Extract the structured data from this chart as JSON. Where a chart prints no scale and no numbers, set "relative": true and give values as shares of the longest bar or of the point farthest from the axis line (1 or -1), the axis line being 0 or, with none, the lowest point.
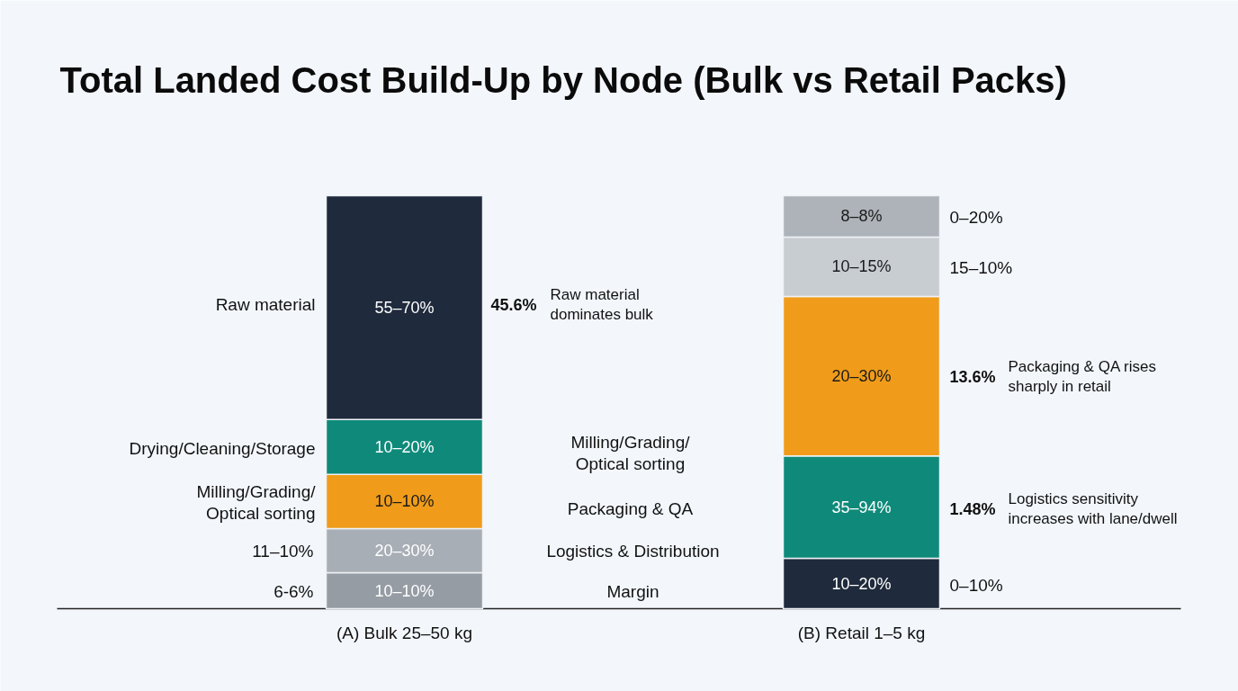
{
  "chart_data": {
    "type": "bar",
    "title": "Total Landed Cost Build-Up by Node (Bulk vs Retail Packs)",
    "categories": [
      "(A) Bulk 25–50 kg",
      "(B) Retail 1–5 kg"
    ],
    "stacked": true,
    "relative": true,
    "series": [
      {
        "color": "#959ca4",
        "values": [
          0.087,
          null
        ]
      },
      {
        "color": "#a8aeb5",
        "values": [
          0.107,
          null
        ]
      },
      {
        "color": "#f09c1a",
        "values": [
          0.131,
          null
        ]
      },
      {
        "color": "#0f8a7a",
        "values": [
          0.133,
          null
        ]
      },
      {
        "color": "#1f2a3c",
        "values": [
          0.542,
          null
        ]
      },
      {
        "color": "#1f2a3c",
        "values": [
          null,
          0.122
        ]
      },
      {
        "color": "#0f8a7a",
        "values": [
          null,
          0.248
        ]
      },
      {
        "color": "#f09c1a",
        "values": [
          null,
          0.386
        ]
      },
      {
        "color": "#c8cdd2",
        "values": [
          null,
          0.144
        ]
      },
      {
        "color": "#adb3b9",
        "values": [
          null,
          0.1
        ]
      }
    ],
    "annotations": [
      "10–10%",
      "20–30%",
      "10–10%",
      "10–20%",
      "55–70%",
      "10–20%",
      "35–94%",
      "20–30%",
      "10–15%",
      "8–8%",
      "45.6%",
      "Raw material dominates bulk",
      "13.6%",
      "Packaging & QA rises sharply in retail",
      "1.48%",
      "Logistics sensitivity increases with lane/dwell",
      "0–20%",
      "15–10%",
      "0–10%",
      "11–10%",
      "6-6%",
      "Raw material",
      "Drying/Cleaning/Storage",
      "Milling/Grading/Optical sorting",
      "Milling/Grading/Optical sorting",
      "Packaging & QA",
      "Logistics & Distribution",
      "Margin"
    ]
  }
}
